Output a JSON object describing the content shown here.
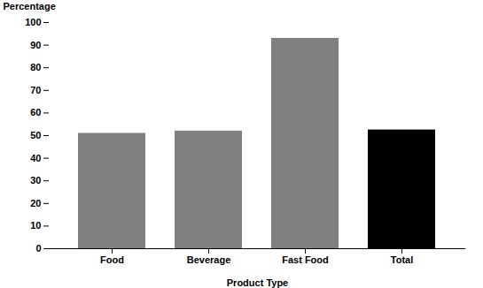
{
  "chart_data": {
    "type": "bar",
    "categories": [
      "Food",
      "Beverage",
      "Fast Food",
      "Total"
    ],
    "values": [
      51,
      52,
      93,
      52.5
    ],
    "colors": [
      "#808080",
      "#808080",
      "#808080",
      "#000000"
    ],
    "xlabel": "Product Type",
    "ylabel": "Percentage",
    "ylim": [
      0,
      100
    ],
    "yticks": [
      0,
      10,
      20,
      30,
      40,
      50,
      60,
      70,
      80,
      90,
      100
    ],
    "grid": false
  }
}
